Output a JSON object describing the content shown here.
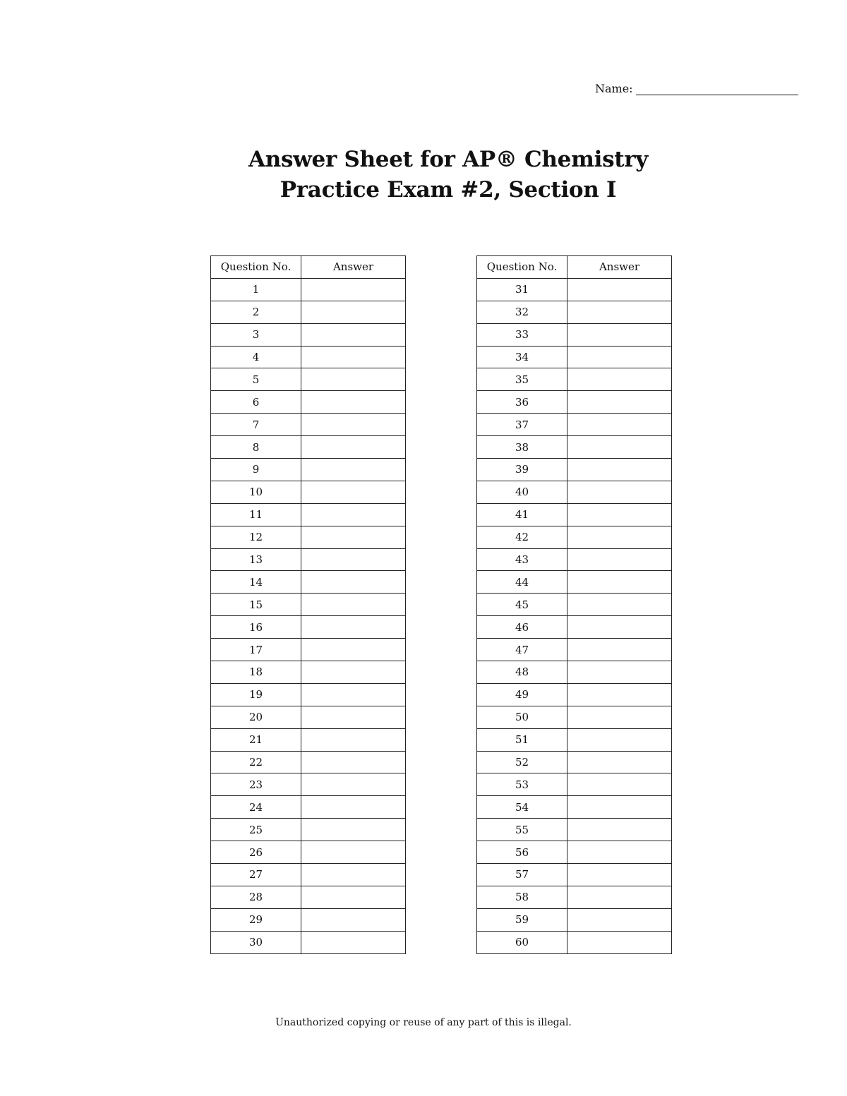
{
  "name_label": "Name:",
  "title": {
    "line1": "Answer Sheet for AP® Chemistry",
    "line2": "Practice Exam #2, Section I"
  },
  "table_headers": {
    "question": "Question No.",
    "answer": "Answer"
  },
  "left_table": {
    "questions": [
      "1",
      "2",
      "3",
      "4",
      "5",
      "6",
      "7",
      "8",
      "9",
      "10",
      "11",
      "12",
      "13",
      "14",
      "15",
      "16",
      "17",
      "18",
      "19",
      "20",
      "21",
      "22",
      "23",
      "24",
      "25",
      "26",
      "27",
      "28",
      "29",
      "30"
    ]
  },
  "right_table": {
    "questions": [
      "31",
      "32",
      "33",
      "34",
      "35",
      "36",
      "37",
      "38",
      "39",
      "40",
      "41",
      "42",
      "43",
      "44",
      "45",
      "46",
      "47",
      "48",
      "49",
      "50",
      "51",
      "52",
      "53",
      "54",
      "55",
      "56",
      "57",
      "58",
      "59",
      "60"
    ]
  },
  "footer": "Unauthorized copying or reuse of any part of this is illegal."
}
